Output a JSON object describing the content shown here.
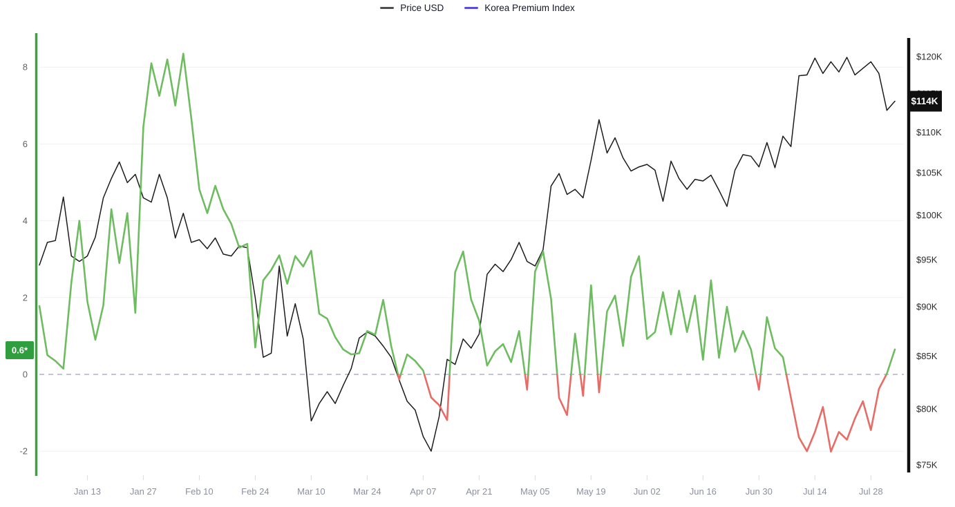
{
  "legend": [
    {
      "label": "Price USD",
      "color": "#4d4d52"
    },
    {
      "label": "Korea Premium Index",
      "color": "#5a4be0"
    }
  ],
  "chart_data": {
    "type": "line",
    "title": "",
    "description": "Korea Premium Index (left axis, green above 0 / red below 0) vs BTC Price USD (right axis, black), daily data sampled every 2 days from Jan 01 to Aug 03",
    "x_tick_labels": [
      "Jan 13",
      "Jan 27",
      "Feb 10",
      "Feb 24",
      "Mar 10",
      "Mar 24",
      "Apr 07",
      "Apr 21",
      "May 05",
      "May 19",
      "Jun 02",
      "Jun 16",
      "Jun 30",
      "Jul 14",
      "Jul 28"
    ],
    "left_axis": {
      "ticks": [
        8,
        6,
        4,
        2,
        0,
        -2
      ],
      "badge": "0.6*",
      "badge_value": 0.63,
      "axis_color": "#3fa23f",
      "badge_bg": "#2f9e3f",
      "zero_line": 0
    },
    "right_axis": {
      "ticks": [
        120,
        115,
        110,
        105,
        100,
        95,
        90,
        85,
        80,
        75
      ],
      "tick_labels": [
        "$120K",
        "$115K",
        "$110K",
        "$105K",
        "$100K",
        "$95K",
        "$90K",
        "$85K",
        "$80K",
        "$75K"
      ],
      "badge": "$114K",
      "badge_value": 114,
      "axis_color": "#101010",
      "badge_bg": "#101010"
    },
    "series": [
      {
        "name": "Price USD",
        "axis": "right",
        "color": "#1b1b1b",
        "unit": "USD thousands",
        "values": [
          94.4,
          96.9,
          97.1,
          102.1,
          95.4,
          94.8,
          95.4,
          97.5,
          102.0,
          104.3,
          106.3,
          103.8,
          104.8,
          102.0,
          101.5,
          104.8,
          102.0,
          97.4,
          100.2,
          96.9,
          97.2,
          96.2,
          97.4,
          95.6,
          95.4,
          96.5,
          96.3,
          90.9,
          84.9,
          85.3,
          94.3,
          87.0,
          90.3,
          86.7,
          78.9,
          80.5,
          81.6,
          80.5,
          82.2,
          83.8,
          86.8,
          87.4,
          87.0,
          86.0,
          84.9,
          82.7,
          80.7,
          79.9,
          77.5,
          76.2,
          79.3,
          84.7,
          84.2,
          86.7,
          85.8,
          87.2,
          93.4,
          94.5,
          93.7,
          95.0,
          96.9,
          94.8,
          94.3,
          96.1,
          103.4,
          104.9,
          102.4,
          103.0,
          102.0,
          106.5,
          111.6,
          107.4,
          109.3,
          106.8,
          105.2,
          105.7,
          106.0,
          105.3,
          101.6,
          106.4,
          104.3,
          103.0,
          104.2,
          104.0,
          104.7,
          102.9,
          101.0,
          105.3,
          107.2,
          107.0,
          105.7,
          108.7,
          105.6,
          109.5,
          108.2,
          117.4,
          117.5,
          119.8,
          117.7,
          119.3,
          117.9,
          119.9,
          117.5,
          118.4,
          119.3,
          117.7,
          112.8,
          114.0
        ]
      },
      {
        "name": "Korea Premium Index",
        "axis": "left",
        "color_positive": "#6dbc5f",
        "color_negative": "#e76c66",
        "unit": "percent",
        "values": [
          1.78,
          0.5,
          0.35,
          0.15,
          2.4,
          4.0,
          1.9,
          0.9,
          1.8,
          4.3,
          2.9,
          4.2,
          1.6,
          6.44,
          8.1,
          7.25,
          8.2,
          7.0,
          8.35,
          6.67,
          4.82,
          4.2,
          4.91,
          4.3,
          3.92,
          3.3,
          3.4,
          0.7,
          2.45,
          2.72,
          3.1,
          2.36,
          3.08,
          2.81,
          3.22,
          1.58,
          1.45,
          0.97,
          0.65,
          0.52,
          0.55,
          1.13,
          1.03,
          1.94,
          0.74,
          -0.13,
          0.52,
          0.35,
          0.1,
          -0.6,
          -0.8,
          -1.19,
          2.66,
          3.2,
          1.95,
          1.4,
          0.23,
          0.6,
          0.79,
          0.32,
          1.13,
          -0.4,
          2.68,
          3.2,
          1.96,
          -0.61,
          -1.06,
          1.06,
          -0.56,
          2.32,
          -0.47,
          1.64,
          2.05,
          0.74,
          2.54,
          3.08,
          0.92,
          1.1,
          2.14,
          1.04,
          2.18,
          1.1,
          2.05,
          0.38,
          2.45,
          0.43,
          1.76,
          0.59,
          1.13,
          0.65,
          -0.4,
          1.49,
          0.68,
          0.45,
          -0.61,
          -1.64,
          -2.0,
          -1.5,
          -0.85,
          -2.01,
          -1.5,
          -1.7,
          -1.15,
          -0.7,
          -1.45,
          -0.38,
          0.02,
          0.65
        ]
      }
    ],
    "points_every_days": 2,
    "x_range": [
      "Jan 01",
      "Aug 03"
    ],
    "left_ylim": [
      -2.6,
      8.9
    ],
    "right_ylim_usd_k": [
      75,
      120
    ],
    "grid": "horizontal-light",
    "zero_line_style": "dashed",
    "legend_position": "top-center"
  }
}
